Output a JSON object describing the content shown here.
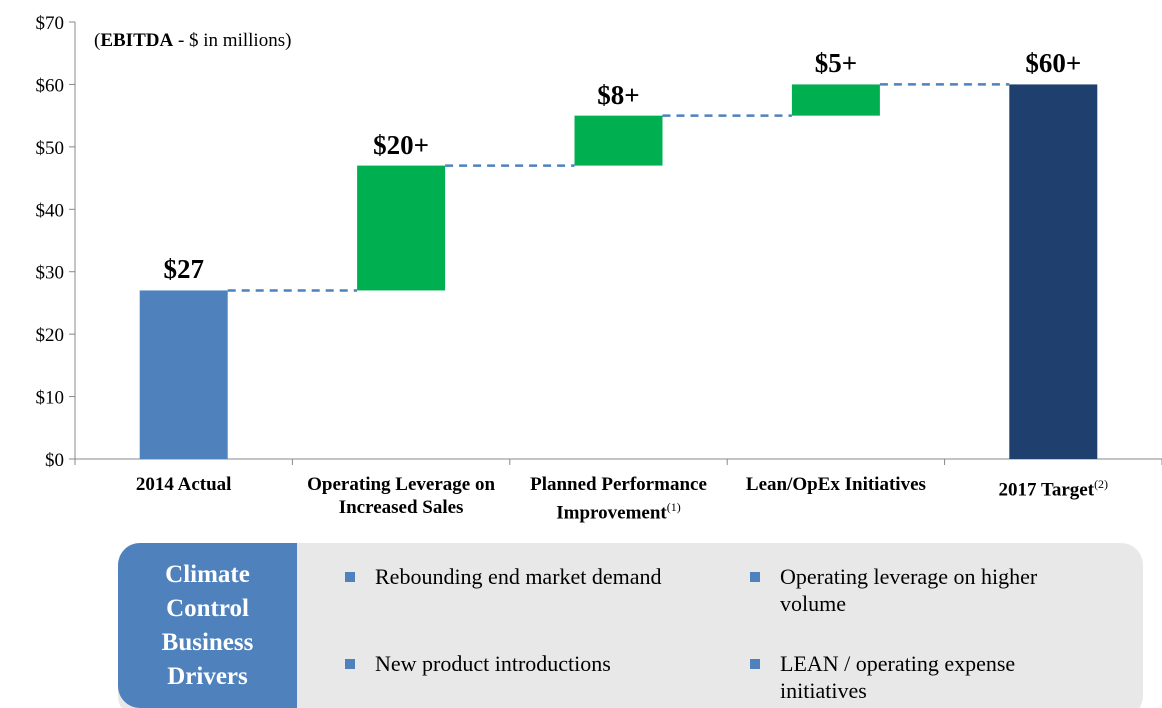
{
  "chart_data": {
    "type": "waterfall",
    "note": [
      "(",
      "EBITDA",
      " - $ in millions)"
    ],
    "categories": [
      "2014 Actual",
      "Operating Leverage on Increased Sales",
      "Planned Performance Improvement",
      "Lean/OpEx Initiatives",
      "2017 Target"
    ],
    "category_notes": [
      null,
      null,
      "(1)",
      null,
      "(2)"
    ],
    "values": [
      27,
      20,
      8,
      5,
      60
    ],
    "value_labels": [
      "$27",
      "$20+",
      "$8+",
      "$5+",
      "$60+"
    ],
    "kinds": [
      "total",
      "delta",
      "delta",
      "delta",
      "total"
    ],
    "colors": [
      "#4f81bd",
      "#00b050",
      "#00b050",
      "#00b050",
      "#1f3f6e"
    ],
    "connector_color": "#4f81bd",
    "ylim": [
      0,
      70
    ],
    "yticks": [
      {
        "value": 0,
        "label": "$0"
      },
      {
        "value": 10,
        "label": "$10"
      },
      {
        "value": 20,
        "label": "$20"
      },
      {
        "value": 30,
        "label": "$30"
      },
      {
        "value": 40,
        "label": "$40"
      },
      {
        "value": 50,
        "label": "$50"
      },
      {
        "value": 60,
        "label": "$60"
      },
      {
        "value": 70,
        "label": "$70"
      }
    ]
  },
  "drivers": {
    "title": "Climate Control Business Drivers",
    "items": [
      "Rebounding end market demand",
      "Operating leverage on higher volume",
      "New product introductions",
      "LEAN / operating expense initiatives"
    ]
  }
}
